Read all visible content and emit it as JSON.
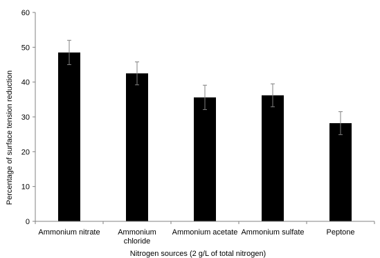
{
  "chart_data": {
    "type": "bar",
    "title": "",
    "xlabel": "Nitrogen sources (2 g/L of total nitrogen)",
    "ylabel": "Percentage of surface tension reduction",
    "ylim": [
      0,
      60
    ],
    "yticks": [
      0,
      10,
      20,
      30,
      40,
      50,
      60
    ],
    "grid": false,
    "categories": [
      [
        "Ammonium nitrate"
      ],
      [
        "Ammonium",
        "chloride"
      ],
      [
        "Ammonium acetate"
      ],
      [
        "Ammonium sulfate"
      ],
      [
        "Peptone"
      ]
    ],
    "values": [
      48.5,
      42.5,
      35.6,
      36.2,
      28.2
    ],
    "error": [
      3.5,
      3.3,
      3.5,
      3.3,
      3.3
    ],
    "colors": {
      "bar": "#000000",
      "axis": "#808080",
      "error": "#808080"
    }
  }
}
